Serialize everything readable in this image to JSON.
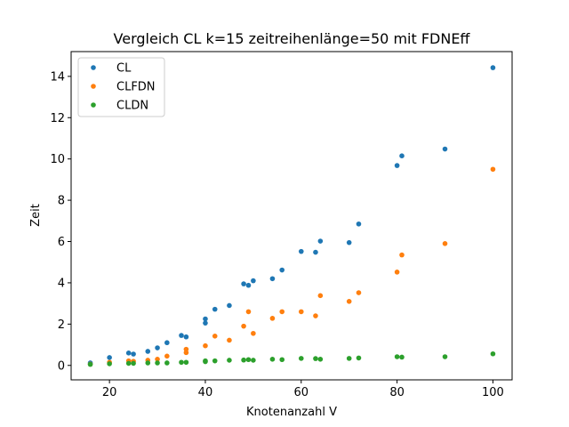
{
  "chart_data": {
    "type": "scatter",
    "title": "Vergleich CL k=15 zeitreihenlänge=50 mit FDNEff",
    "xlabel": "Knotenanzahl V",
    "ylabel": "Zeit",
    "xlim": [
      12,
      104
    ],
    "ylim": [
      -0.7,
      15.2
    ],
    "xticks": [
      20,
      40,
      60,
      80,
      100
    ],
    "yticks": [
      0,
      2,
      4,
      6,
      8,
      10,
      12,
      14
    ],
    "grid": false,
    "legend_position": "top-left",
    "series": [
      {
        "name": "CL",
        "color": "#1f77b4",
        "x": [
          16,
          20,
          24,
          25,
          28,
          30,
          32,
          35,
          36,
          40,
          40,
          42,
          45,
          48,
          49,
          50,
          54,
          56,
          60,
          63,
          64,
          70,
          72,
          80,
          81,
          90,
          100
        ],
        "y": [
          0.12,
          0.38,
          0.6,
          0.55,
          0.68,
          0.85,
          1.1,
          1.45,
          1.38,
          2.25,
          2.05,
          2.72,
          2.9,
          3.95,
          3.88,
          4.1,
          4.2,
          4.62,
          5.52,
          5.48,
          6.02,
          5.95,
          6.85,
          9.68,
          10.15,
          10.48,
          14.42
        ]
      },
      {
        "name": "CLFDN",
        "color": "#ff7f0e",
        "x": [
          16,
          20,
          24,
          25,
          28,
          30,
          32,
          36,
          36,
          40,
          42,
          45,
          48,
          49,
          50,
          54,
          56,
          60,
          63,
          64,
          70,
          72,
          80,
          81,
          90,
          100
        ],
        "y": [
          0.06,
          0.15,
          0.22,
          0.2,
          0.25,
          0.3,
          0.45,
          0.78,
          0.62,
          0.95,
          1.42,
          1.22,
          1.9,
          2.6,
          1.55,
          2.28,
          2.6,
          2.6,
          2.4,
          3.38,
          3.1,
          3.52,
          4.52,
          5.35,
          5.9,
          9.5
        ]
      },
      {
        "name": "CLDN",
        "color": "#2ca02c",
        "x": [
          16,
          20,
          24,
          25,
          28,
          30,
          32,
          35,
          36,
          40,
          40,
          42,
          45,
          48,
          49,
          50,
          54,
          56,
          60,
          63,
          64,
          70,
          72,
          80,
          81,
          90,
          100
        ],
        "y": [
          0.05,
          0.08,
          0.1,
          0.1,
          0.12,
          0.12,
          0.12,
          0.15,
          0.15,
          0.18,
          0.22,
          0.22,
          0.25,
          0.26,
          0.28,
          0.25,
          0.3,
          0.28,
          0.34,
          0.33,
          0.3,
          0.34,
          0.36,
          0.42,
          0.4,
          0.42,
          0.56
        ]
      }
    ]
  }
}
